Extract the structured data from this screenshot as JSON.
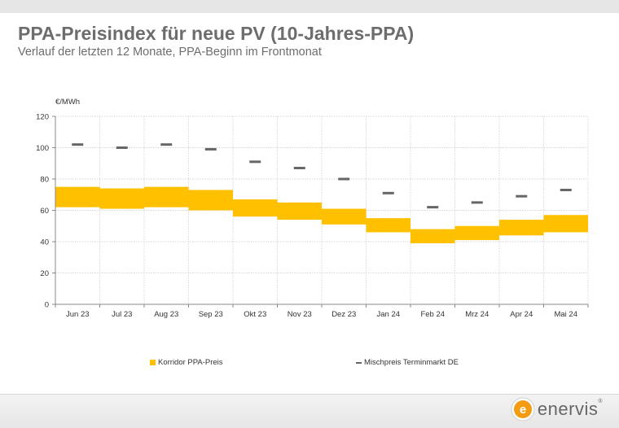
{
  "page": {
    "title": "PPA-Preisindex für neue PV (10-Jahres-PPA)",
    "subtitle": "Verlauf der letzten 12 Monate, PPA-Beginn im Frontmonat"
  },
  "brand": {
    "logo_letter": "e",
    "name": "enervis",
    "registered": "®",
    "accent": "#f39c12"
  },
  "colors": {
    "corridor": "#ffc000",
    "mix_price": "#666666",
    "grid": "#c8c8c8"
  },
  "chart_data": {
    "type": "bar",
    "ylabel": "€/MWh",
    "ylim": [
      0,
      120
    ],
    "yticks": [
      0,
      20,
      40,
      60,
      80,
      100,
      120
    ],
    "grid": true,
    "legend_position": "bottom",
    "categories": [
      "Jun 23",
      "Jul 23",
      "Aug 23",
      "Sep 23",
      "Okt 23",
      "Nov 23",
      "Dez 23",
      "Jan 24",
      "Feb 24",
      "Mrz 24",
      "Apr 24",
      "Mai 24"
    ],
    "series": [
      {
        "name": "Korridor PPA-Preis",
        "kind": "floating-bar",
        "low": [
          62,
          61,
          62,
          60,
          56,
          54,
          51,
          46,
          39,
          41,
          44,
          46
        ],
        "high": [
          75,
          74,
          75,
          73,
          67,
          65,
          61,
          55,
          48,
          50,
          54,
          57
        ]
      },
      {
        "name": "Mischpreis Terminmarkt DE",
        "kind": "marker",
        "values": [
          102,
          100,
          102,
          99,
          91,
          87,
          80,
          71,
          62,
          65,
          69,
          73
        ]
      }
    ]
  }
}
